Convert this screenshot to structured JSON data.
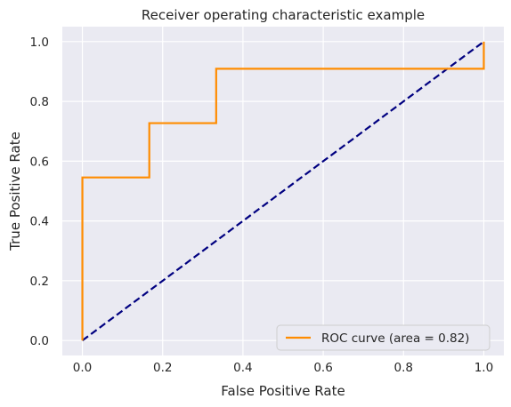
{
  "chart_data": {
    "type": "line",
    "title": "Receiver operating characteristic example",
    "xlabel": "False Positive Rate",
    "ylabel": "True Positive Rate",
    "xlim": [
      -0.05,
      1.05
    ],
    "ylim": [
      -0.05,
      1.05
    ],
    "xticks": [
      0.0,
      0.2,
      0.4,
      0.6,
      0.8,
      1.0
    ],
    "yticks": [
      0.0,
      0.2,
      0.4,
      0.6,
      0.8,
      1.0
    ],
    "xtick_labels": [
      "0.0",
      "0.2",
      "0.4",
      "0.6",
      "0.8",
      "1.0"
    ],
    "ytick_labels": [
      "0.0",
      "0.2",
      "0.4",
      "0.6",
      "0.8",
      "1.0"
    ],
    "grid": true,
    "legend_position": "lower-right",
    "series": [
      {
        "name": "ROC curve (area = 0.82)",
        "color": "#ff8c00",
        "style": "solid",
        "x": [
          0.0,
          0.0,
          0.0,
          0.1667,
          0.1667,
          0.3333,
          0.3333,
          1.0,
          1.0
        ],
        "y": [
          0.0,
          0.0909,
          0.5455,
          0.5455,
          0.7273,
          0.7273,
          0.9091,
          0.9091,
          1.0
        ]
      },
      {
        "name": "",
        "color": "#000080",
        "style": "dashed",
        "x": [
          0.0,
          1.0
        ],
        "y": [
          0.0,
          1.0
        ]
      }
    ]
  }
}
